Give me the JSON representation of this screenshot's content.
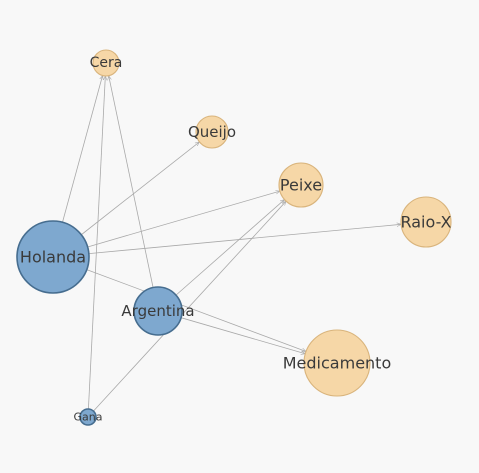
{
  "colors": {
    "background": "#f8f8f8",
    "exporter_fill": "#7ea8cf",
    "exporter_stroke": "#466d8f",
    "product_fill": "#f6d7a7",
    "product_stroke": "#d9b47c",
    "edge": "#a9a9a9"
  },
  "nodes": [
    {
      "id": "holanda",
      "label": "Holanda",
      "kind": "exporter"
    },
    {
      "id": "argentina",
      "label": "Argentina",
      "kind": "exporter"
    },
    {
      "id": "gana",
      "label": "Gana",
      "kind": "exporter"
    },
    {
      "id": "cera",
      "label": "Cera",
      "kind": "product"
    },
    {
      "id": "queijo",
      "label": "Queijo",
      "kind": "product"
    },
    {
      "id": "peixe",
      "label": "Peixe",
      "kind": "product"
    },
    {
      "id": "raiox",
      "label": "Raio-X",
      "kind": "product"
    },
    {
      "id": "medicamento",
      "label": "Medicamento",
      "kind": "product"
    }
  ],
  "edges": [
    {
      "from": "holanda",
      "to": "cera"
    },
    {
      "from": "holanda",
      "to": "queijo"
    },
    {
      "from": "holanda",
      "to": "peixe"
    },
    {
      "from": "holanda",
      "to": "raiox"
    },
    {
      "from": "holanda",
      "to": "medicamento"
    },
    {
      "from": "argentina",
      "to": "cera"
    },
    {
      "from": "argentina",
      "to": "peixe"
    },
    {
      "from": "argentina",
      "to": "medicamento"
    },
    {
      "from": "gana",
      "to": "cera"
    },
    {
      "from": "gana",
      "to": "peixe"
    }
  ]
}
